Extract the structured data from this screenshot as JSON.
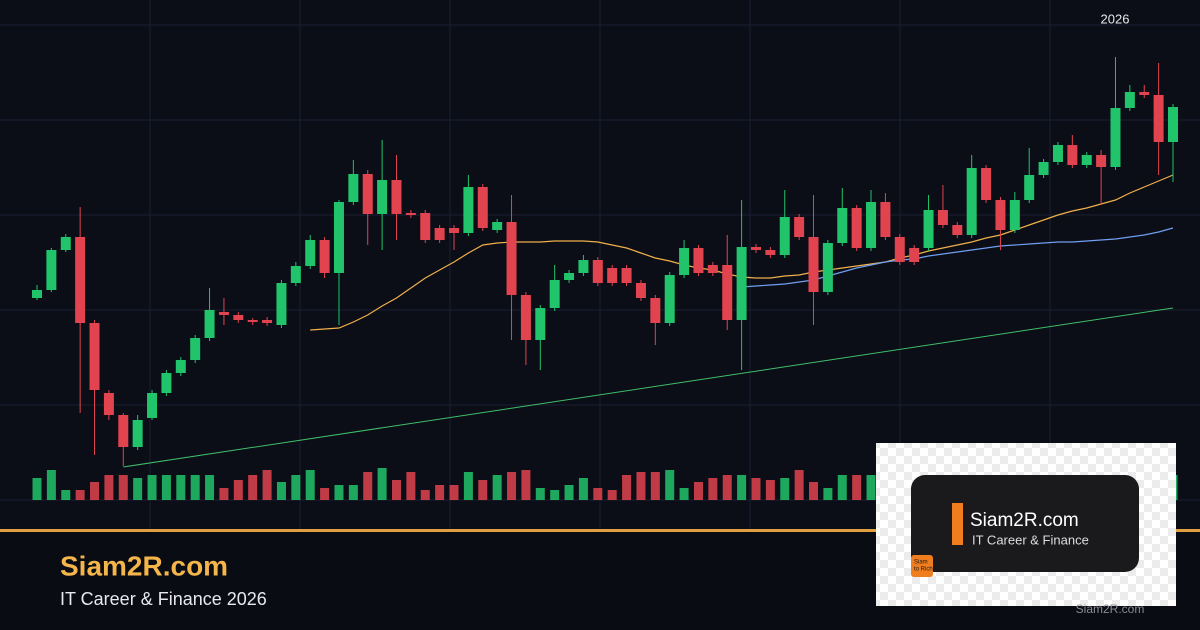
{
  "chart_data": {
    "type": "candlestick",
    "annotation": "2026",
    "ylim": [
      0,
      530
    ],
    "up_color": "#22c46b",
    "down_color": "#e2444f",
    "open": [
      232,
      240,
      280,
      293,
      207,
      137,
      115,
      83,
      112,
      137,
      157,
      170,
      192,
      218,
      215,
      210,
      210,
      205,
      247,
      264,
      290,
      257,
      328,
      356,
      316,
      350,
      317,
      317,
      302,
      302,
      297,
      343,
      300,
      308,
      235,
      190,
      222,
      250,
      257,
      270,
      262,
      262,
      247,
      232,
      207,
      255,
      282,
      265,
      265,
      210,
      283,
      280,
      275,
      313,
      293,
      238,
      287,
      322,
      282,
      328,
      293,
      282,
      282,
      320,
      305,
      295,
      362,
      330,
      300,
      330,
      355,
      368,
      385,
      365,
      375,
      363,
      422,
      438,
      435,
      388
    ],
    "high": [
      245,
      282,
      296,
      323,
      210,
      140,
      117,
      115,
      140,
      160,
      173,
      195,
      242,
      232,
      218,
      212,
      213,
      250,
      268,
      295,
      293,
      330,
      370,
      360,
      390,
      375,
      320,
      320,
      305,
      305,
      355,
      346,
      311,
      335,
      238,
      225,
      265,
      260,
      275,
      273,
      265,
      265,
      250,
      235,
      258,
      290,
      285,
      268,
      295,
      330,
      286,
      283,
      340,
      316,
      335,
      290,
      342,
      325,
      340,
      337,
      296,
      285,
      335,
      345,
      308,
      375,
      365,
      333,
      338,
      382,
      371,
      388,
      395,
      378,
      380,
      473,
      445,
      445,
      467,
      426
    ],
    "low": [
      230,
      238,
      278,
      117,
      75,
      110,
      64,
      80,
      110,
      134,
      154,
      167,
      189,
      205,
      207,
      205,
      204,
      202,
      244,
      261,
      252,
      205,
      325,
      285,
      280,
      290,
      312,
      287,
      287,
      280,
      294,
      299,
      297,
      190,
      165,
      160,
      219,
      247,
      254,
      244,
      244,
      244,
      229,
      185,
      204,
      252,
      254,
      254,
      200,
      160,
      277,
      272,
      272,
      290,
      205,
      235,
      284,
      279,
      279,
      290,
      265,
      265,
      279,
      302,
      292,
      292,
      327,
      280,
      297,
      327,
      352,
      365,
      362,
      362,
      325,
      360,
      419,
      432,
      355,
      348
    ],
    "close": [
      240,
      280,
      293,
      207,
      140,
      115,
      83,
      110,
      137,
      157,
      170,
      192,
      220,
      215,
      210,
      208,
      207,
      247,
      264,
      290,
      257,
      328,
      356,
      316,
      350,
      316,
      315,
      290,
      290,
      297,
      343,
      302,
      308,
      235,
      190,
      222,
      250,
      257,
      270,
      247,
      247,
      247,
      232,
      207,
      255,
      282,
      257,
      257,
      210,
      283,
      280,
      275,
      313,
      293,
      238,
      287,
      322,
      282,
      328,
      293,
      268,
      268,
      320,
      305,
      295,
      362,
      330,
      300,
      330,
      355,
      368,
      385,
      365,
      375,
      363,
      422,
      438,
      435,
      388,
      423
    ],
    "volume": [
      22,
      30,
      10,
      10,
      18,
      25,
      25,
      22,
      25,
      25,
      25,
      25,
      25,
      12,
      20,
      25,
      30,
      18,
      25,
      30,
      12,
      15,
      15,
      28,
      32,
      20,
      28,
      10,
      15,
      15,
      28,
      20,
      25,
      28,
      30,
      12,
      10,
      15,
      22,
      12,
      10,
      25,
      28,
      28,
      30,
      12,
      18,
      22,
      25,
      25,
      22,
      20,
      22,
      30,
      18,
      12,
      25,
      25,
      25,
      15,
      20,
      25,
      12,
      22,
      18,
      15,
      28,
      18,
      20,
      12,
      25,
      20,
      22,
      18,
      25,
      28,
      30,
      22,
      20,
      25
    ],
    "series": [
      {
        "color": "#f0b04a",
        "values": [
          null,
          null,
          null,
          null,
          null,
          null,
          null,
          null,
          null,
          null,
          null,
          null,
          null,
          null,
          null,
          null,
          null,
          null,
          null,
          200,
          201,
          202,
          208,
          215,
          224,
          232,
          242,
          252,
          260,
          268,
          277,
          285,
          287,
          288,
          288,
          288,
          289,
          289,
          289,
          288,
          285,
          282,
          277,
          272,
          269,
          265,
          262,
          260,
          256,
          253,
          252,
          252,
          254,
          255,
          258,
          260,
          262,
          264,
          266,
          268,
          272,
          275,
          279,
          282,
          285,
          288,
          292,
          295,
          300,
          305,
          310,
          315,
          319,
          322,
          326,
          330,
          337,
          343,
          349,
          355
        ]
      },
      {
        "color": "#6f9ff0",
        "values": [
          null,
          null,
          null,
          null,
          null,
          null,
          null,
          null,
          null,
          null,
          null,
          null,
          null,
          null,
          null,
          null,
          null,
          null,
          null,
          null,
          null,
          null,
          null,
          null,
          null,
          null,
          null,
          null,
          null,
          null,
          null,
          null,
          null,
          null,
          null,
          null,
          null,
          null,
          null,
          null,
          null,
          null,
          null,
          null,
          null,
          null,
          null,
          null,
          null,
          243,
          244,
          245,
          246,
          248,
          250,
          254,
          258,
          262,
          265,
          268,
          270,
          271,
          274,
          276,
          278,
          280,
          282,
          284,
          285,
          286,
          287,
          288,
          288,
          289,
          290,
          291,
          293,
          295,
          298,
          302
        ]
      }
    ],
    "trendline": {
      "color": "#3fbf6a",
      "x": [
        6,
        79
      ],
      "values": [
        63,
        222
      ]
    }
  },
  "brand": {
    "title": "Siam2R.com",
    "subtitle": "IT Career & Finance 2026"
  },
  "card": {
    "title": "Siam2R.com",
    "subtitle": "IT Career & Finance",
    "icon_line1": "Siam",
    "icon_line2": "to Rich",
    "footer": "Siam2R.com"
  }
}
